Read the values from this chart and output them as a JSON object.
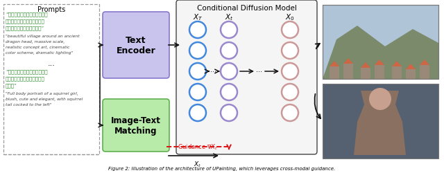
{
  "title": "Conditional Diffusion Model",
  "prompts_title": "Prompts",
  "chinese_text1": "“围绕古老龙头的美丽村庄，规模宏大，通真的概念艺术，电影色彩方案，戏剧性的灯光”",
  "english_text1": "\"beautiful village around an ancient\ndragon head, massive scale,\nrealistic concept art, cinematic\ncolor scheme, dramatic lighting\"",
  "dots": "...",
  "chinese_text2": "“一位松鼠女孩的全身肥像，腊红、可爱、优雅，向左翘着松鼠尾巴”",
  "english_text2": "\"Full body portrait of a squirrel girl,\nblush, cute and elegant, with squirrel\ntail cocked to the left\"",
  "text_encoder_label": "Text\nEncoder",
  "image_text_label": "Image-Text\nMatching",
  "bg_color": "#ffffff",
  "prompts_box_edge": "#999999",
  "text_encoder_fill": "#c8c4ee",
  "text_encoder_edge": "#8878cc",
  "image_text_fill": "#b8eaaa",
  "image_text_edge": "#60b050",
  "circle_blue_fill": "#ffffff",
  "circle_blue_edge": "#4488dd",
  "circle_purple_fill": "#ffffff",
  "circle_purple_edge": "#9988cc",
  "circle_pink_fill": "#ffffff",
  "circle_pink_edge": "#cc9999",
  "diffusion_box_fill": "#f5f5f5",
  "diffusion_box_edge": "#444444",
  "arrow_color": "#111111",
  "red_dashed_color": "#dd1111",
  "green_text_color": "#2a8a2a",
  "gray_text_color": "#444444"
}
